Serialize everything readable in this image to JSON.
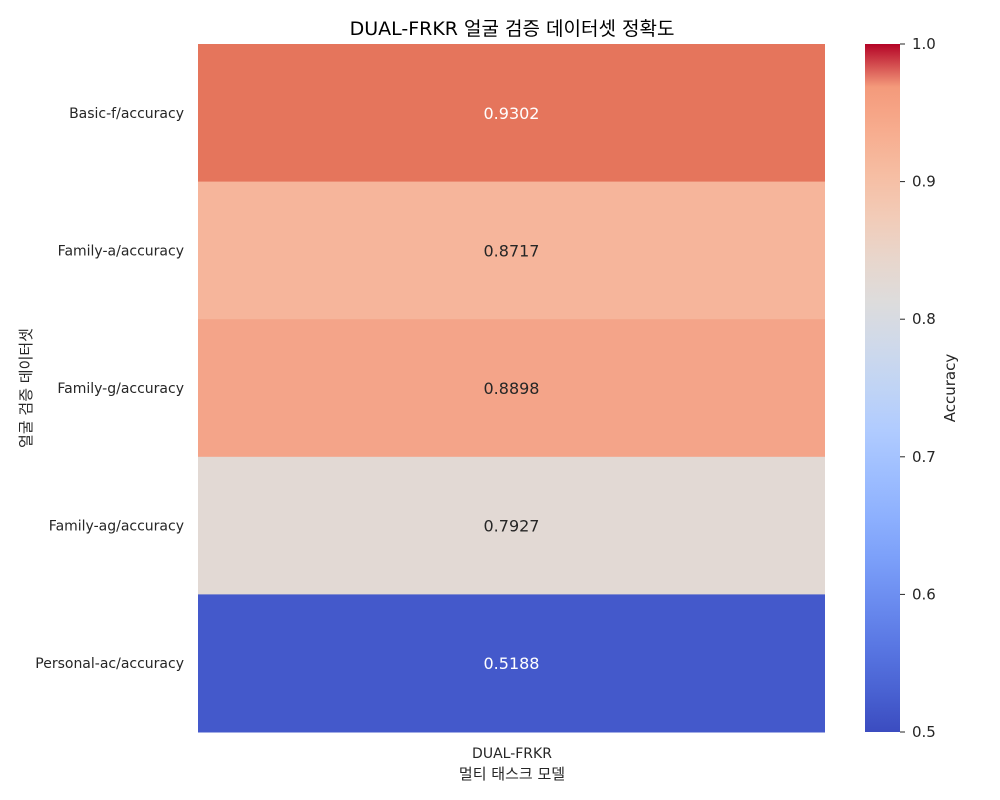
{
  "chart_data": {
    "type": "heatmap",
    "title": "DUAL-FRKR 얼굴 검증 데이터셋 정확도",
    "xlabel": "멀티 태스크 모델",
    "ylabel": "얼굴 검증 데이터셋",
    "columns": [
      "DUAL-FRKR"
    ],
    "rows": [
      "Basic-f/accuracy",
      "Family-a/accuracy",
      "Family-g/accuracy",
      "Family-ag/accuracy",
      "Personal-ac/accuracy"
    ],
    "values": [
      [
        0.9302
      ],
      [
        0.8717
      ],
      [
        0.8898
      ],
      [
        0.7927
      ],
      [
        0.5188
      ]
    ],
    "value_labels": [
      "0.9302",
      "0.8717",
      "0.8898",
      "0.7927",
      "0.5188"
    ],
    "colormap": "coolwarm",
    "vmin": 0.5,
    "vmax": 1.0,
    "colorbar": {
      "label": "Accuracy",
      "ticks": [
        0.5,
        0.6,
        0.7,
        0.8,
        0.9,
        1.0
      ],
      "tick_labels": [
        "0.5",
        "0.6",
        "0.7",
        "0.8",
        "0.9",
        "1.0"
      ]
    }
  }
}
